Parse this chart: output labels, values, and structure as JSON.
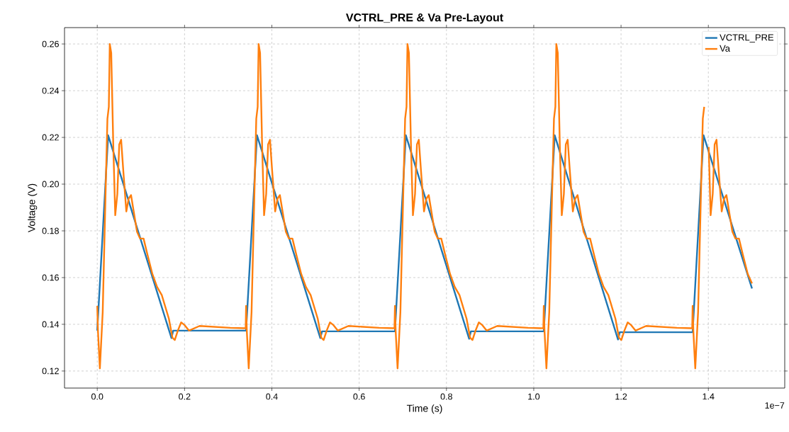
{
  "chart_data": {
    "type": "line",
    "title": "VCTRL_PRE & Va Pre-Layout",
    "xlabel": "Time (s)",
    "ylabel": "Voltage (V)",
    "xlim": [
      -0.075,
      1.575
    ],
    "ylim": [
      0.1127,
      0.267
    ],
    "xticks": [
      {
        "value": 0,
        "label": "0.0"
      },
      {
        "value": 0.2,
        "label": "0.2"
      },
      {
        "value": 0.4,
        "label": "0.4"
      },
      {
        "value": 0.6,
        "label": "0.6"
      },
      {
        "value": 0.8,
        "label": "0.8"
      },
      {
        "value": 1.0,
        "label": "1.0"
      },
      {
        "value": 1.2,
        "label": "1.2"
      },
      {
        "value": 1.4,
        "label": "1.4"
      }
    ],
    "yticks": [
      {
        "value": 0.12,
        "label": "0.12"
      },
      {
        "value": 0.14,
        "label": "0.14"
      },
      {
        "value": 0.16,
        "label": "0.16"
      },
      {
        "value": 0.18,
        "label": "0.18"
      },
      {
        "value": 0.2,
        "label": "0.20"
      },
      {
        "value": 0.22,
        "label": "0.22"
      },
      {
        "value": 0.24,
        "label": "0.24"
      },
      {
        "value": 0.26,
        "label": "0.26"
      }
    ],
    "grid": true,
    "legend": "top right",
    "annotations": [
      "1e−7"
    ],
    "series": [
      {
        "name": "VCTRL_PRE",
        "color": "#1f77b4",
        "x": [
          0,
          0.025,
          0.17,
          0.174,
          0.34,
          0.341,
          0.366,
          0.511,
          0.515,
          0.681,
          0.682,
          0.707,
          0.852,
          0.856,
          1.022,
          1.023,
          1.048,
          1.193,
          1.197,
          1.363,
          1.364,
          1.389,
          1.5
        ],
        "values": [
          0.1373,
          0.2209,
          0.1341,
          0.1373,
          0.1373,
          0.1373,
          0.2209,
          0.1341,
          0.137,
          0.137,
          0.137,
          0.2209,
          0.1338,
          0.137,
          0.137,
          0.137,
          0.2209,
          0.1335,
          0.1366,
          0.1366,
          0.1366,
          0.2209,
          0.1553
        ]
      },
      {
        "name": "Va",
        "color": "#ff7f0e",
        "x": [
          0,
          0.0016,
          0.006,
          0.0125,
          0.019,
          0.0233,
          0.0265,
          0.0287,
          0.032,
          0.0368,
          0.0412,
          0.046,
          0.0504,
          0.0547,
          0.0596,
          0.0666,
          0.072,
          0.0774,
          0.091,
          0.098,
          0.1061,
          0.1153,
          0.1262,
          0.137,
          0.1478,
          0.1641,
          0.1722,
          0.1776,
          0.1846,
          0.1922,
          0.1993,
          0.2101,
          0.2344,
          0.3048,
          0.34,
          0.341,
          0.3426,
          0.347,
          0.3535,
          0.36,
          0.3643,
          0.3675,
          0.3697,
          0.373,
          0.3778,
          0.3822,
          0.387,
          0.3914,
          0.3957,
          0.4006,
          0.4076,
          0.413,
          0.4184,
          0.432,
          0.439,
          0.4471,
          0.4563,
          0.4672,
          0.478,
          0.4888,
          0.5051,
          0.5132,
          0.5186,
          0.5256,
          0.5332,
          0.5403,
          0.5511,
          0.5754,
          0.6458,
          0.681,
          0.682,
          0.6836,
          0.688,
          0.6945,
          0.701,
          0.7053,
          0.7085,
          0.7107,
          0.714,
          0.7188,
          0.7232,
          0.728,
          0.7324,
          0.7367,
          0.7416,
          0.7486,
          0.754,
          0.7594,
          0.773,
          0.78,
          0.7881,
          0.7973,
          0.8082,
          0.819,
          0.8298,
          0.8461,
          0.8542,
          0.8596,
          0.8666,
          0.8742,
          0.8813,
          0.8921,
          0.9164,
          0.9868,
          1.022,
          1.023,
          1.0246,
          1.029,
          1.0355,
          1.042,
          1.0463,
          1.0495,
          1.0517,
          1.055,
          1.0598,
          1.0642,
          1.069,
          1.0734,
          1.0777,
          1.0826,
          1.0896,
          1.095,
          1.1004,
          1.114,
          1.121,
          1.1291,
          1.1383,
          1.1492,
          1.16,
          1.1708,
          1.1871,
          1.1952,
          1.2006,
          1.2076,
          1.2152,
          1.2223,
          1.2331,
          1.2574,
          1.3278,
          1.363,
          1.364,
          1.3656,
          1.37,
          1.3765,
          1.383,
          1.3873,
          1.3905,
          1.3927,
          1.396,
          1.4008,
          1.4052,
          1.41,
          1.4144,
          1.4187,
          1.4236,
          1.4306,
          1.436,
          1.4414,
          1.455,
          1.462,
          1.4701,
          1.4793,
          1.4902,
          1.5
        ],
        "values": [
          0.1479,
          0.1373,
          0.1211,
          0.1453,
          0.1958,
          0.228,
          0.2331,
          0.26,
          0.2562,
          0.2159,
          0.1867,
          0.1958,
          0.217,
          0.219,
          0.2059,
          0.1883,
          0.1938,
          0.1953,
          0.1797,
          0.1767,
          0.1767,
          0.1696,
          0.1616,
          0.156,
          0.1525,
          0.1424,
          0.1343,
          0.1333,
          0.1373,
          0.1408,
          0.1398,
          0.1373,
          0.1393,
          0.1385,
          0.1383,
          0.1479,
          0.1373,
          0.1211,
          0.1453,
          0.1958,
          0.228,
          0.2331,
          0.26,
          0.2562,
          0.2159,
          0.1867,
          0.1958,
          0.217,
          0.219,
          0.2059,
          0.1883,
          0.1938,
          0.1953,
          0.1797,
          0.1767,
          0.1767,
          0.1696,
          0.1616,
          0.156,
          0.1525,
          0.1424,
          0.1343,
          0.1333,
          0.1373,
          0.1408,
          0.1398,
          0.1373,
          0.1393,
          0.1385,
          0.1383,
          0.1479,
          0.1373,
          0.1211,
          0.1453,
          0.1958,
          0.228,
          0.2331,
          0.26,
          0.2562,
          0.2159,
          0.1867,
          0.1958,
          0.217,
          0.219,
          0.2059,
          0.1883,
          0.1938,
          0.1953,
          0.1797,
          0.1767,
          0.1767,
          0.1696,
          0.1616,
          0.156,
          0.1525,
          0.1424,
          0.1343,
          0.1333,
          0.1373,
          0.1408,
          0.1398,
          0.1373,
          0.1393,
          0.1385,
          0.1383,
          0.1479,
          0.1373,
          0.1211,
          0.1453,
          0.1958,
          0.228,
          0.2331,
          0.26,
          0.2562,
          0.2159,
          0.1867,
          0.1958,
          0.217,
          0.219,
          0.2059,
          0.1883,
          0.1938,
          0.1953,
          0.1797,
          0.1767,
          0.1767,
          0.1696,
          0.1616,
          0.156,
          0.1525,
          0.1424,
          0.1343,
          0.1333,
          0.1373,
          0.1408,
          0.1398,
          0.1373,
          0.1393,
          0.1385,
          0.1383,
          0.1479,
          0.1373,
          0.1211,
          0.1453,
          0.1958,
          0.228,
          0.2331,
          null,
          null,
          0.2159,
          0.1867,
          0.1958,
          0.217,
          0.219,
          0.2059,
          0.1883,
          0.1938,
          0.1953,
          0.1797,
          0.1767,
          0.1767,
          0.1696,
          0.1616,
          0.1575
        ]
      }
    ]
  }
}
